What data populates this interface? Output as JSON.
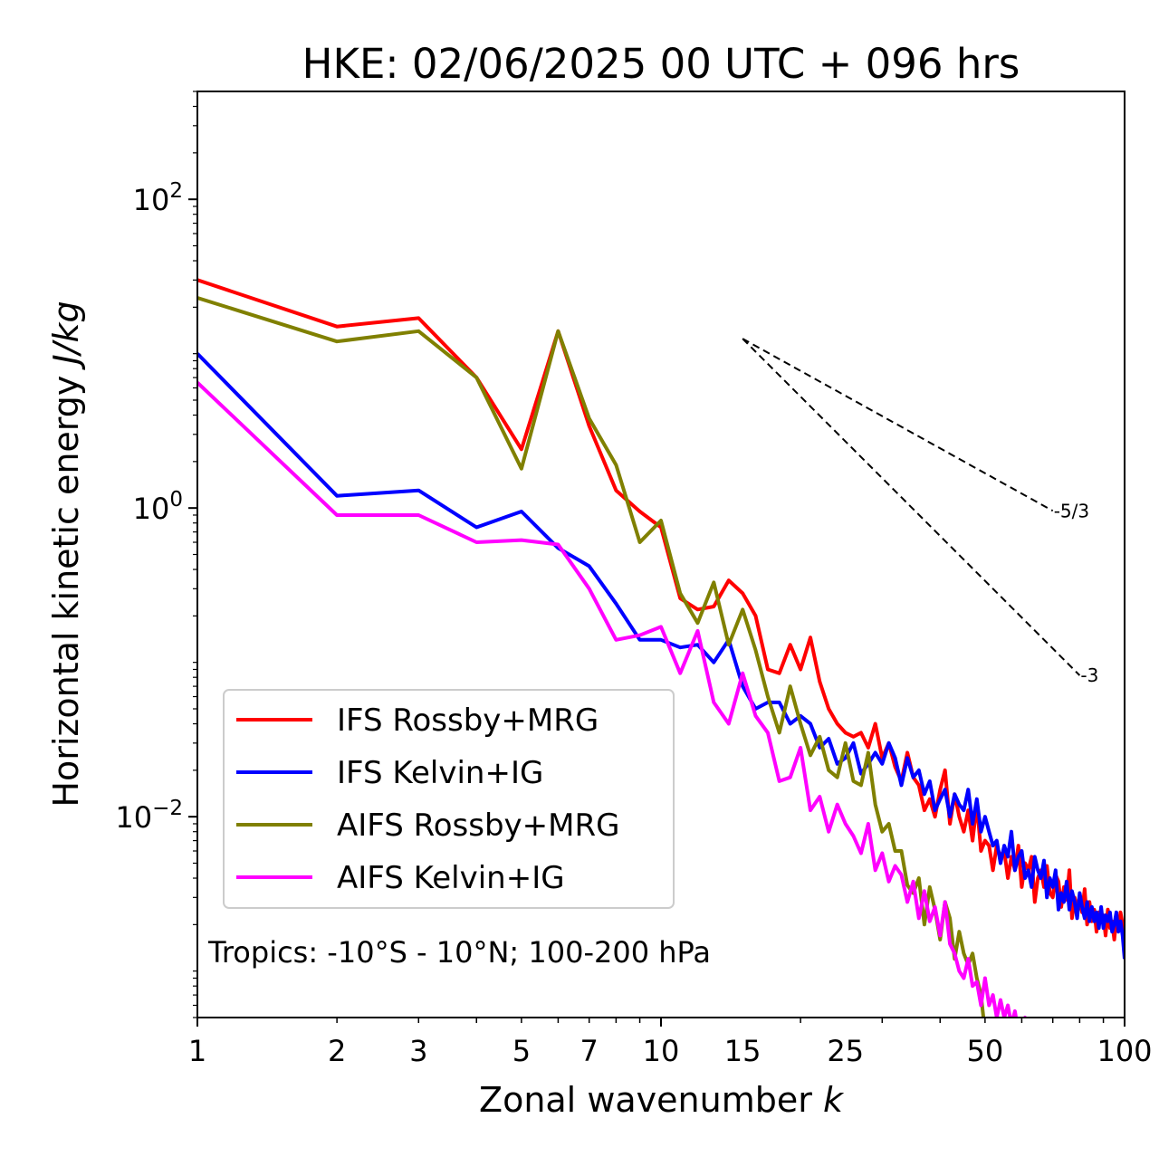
{
  "chart_data": {
    "type": "line",
    "title": "HKE: 02/06/2025 00 UTC + 096 hrs",
    "xlabel": "Zonal wavenumber k",
    "xlabel_main": "Zonal wavenumber ",
    "xlabel_var": "k",
    "ylabel": "Horizontal kinetic energy J/kg",
    "ylabel_main": "Horizontal kinetic energy ",
    "ylabel_unit": "J/kg",
    "xscale": "log",
    "yscale": "log",
    "xlim": [
      1,
      100
    ],
    "ylim": [
      0.0005,
      500
    ],
    "x_ticks": [
      {
        "value": 1,
        "label": "1"
      },
      {
        "value": 2,
        "label": "2"
      },
      {
        "value": 3,
        "label": "3"
      },
      {
        "value": 5,
        "label": "5"
      },
      {
        "value": 7,
        "label": "7"
      },
      {
        "value": 10,
        "label": "10"
      },
      {
        "value": 15,
        "label": "15"
      },
      {
        "value": 25,
        "label": "25"
      },
      {
        "value": 50,
        "label": "50"
      },
      {
        "value": 100,
        "label": "100"
      }
    ],
    "y_ticks": [
      {
        "value": 100,
        "base": "10",
        "exp": "2"
      },
      {
        "value": 1,
        "base": "10",
        "exp": "0"
      },
      {
        "value": 0.01,
        "base": "10",
        "exp": "−2"
      }
    ],
    "grid": false,
    "legend_position": "lower-left",
    "annotation": "Tropics: -10°S - 10°N; 100-200 hPa",
    "reference_lines": [
      {
        "label": "-5/3",
        "slope": -1.6667,
        "x": [
          15,
          70
        ],
        "y0": 12.5
      },
      {
        "label": "-3",
        "slope": -3,
        "x": [
          15,
          80
        ],
        "y0": 12.5
      }
    ],
    "series": [
      {
        "name": "IFS Rossby+MRG",
        "color": "#ff0000",
        "x": [
          1,
          2,
          3,
          4,
          5,
          6,
          7,
          8,
          9,
          10,
          11,
          12,
          13,
          14,
          15,
          16,
          17,
          18,
          19,
          20,
          21,
          22,
          23,
          24,
          25,
          26,
          27,
          28,
          29,
          30,
          31,
          32,
          33,
          34,
          35,
          36,
          37,
          38,
          39,
          40,
          41,
          42,
          43,
          44,
          45,
          46,
          47,
          48,
          49,
          50,
          51,
          52,
          53,
          54,
          55,
          56,
          57,
          58,
          59,
          60,
          61,
          62,
          63,
          64,
          65,
          66,
          67,
          68,
          69,
          70,
          71,
          72,
          73,
          74,
          75,
          76,
          77,
          78,
          79,
          80,
          81,
          82,
          83,
          84,
          85,
          86,
          87,
          88,
          89,
          90,
          91,
          92,
          93,
          94,
          95,
          96,
          97,
          98,
          99,
          100
        ],
        "y": [
          30,
          15,
          17,
          7,
          2.4,
          14,
          3.4,
          1.3,
          0.95,
          0.75,
          0.26,
          0.22,
          0.23,
          0.34,
          0.28,
          0.2,
          0.09,
          0.085,
          0.13,
          0.09,
          0.145,
          0.075,
          0.05,
          0.04,
          0.035,
          0.033,
          0.035,
          0.028,
          0.04,
          0.024,
          0.03,
          0.021,
          0.017,
          0.026,
          0.018,
          0.016,
          0.011,
          0.013,
          0.01,
          0.015,
          0.02,
          0.009,
          0.014,
          0.01,
          0.008,
          0.011,
          0.007,
          0.012,
          0.006,
          0.007,
          0.0065,
          0.0045,
          0.0065,
          0.0055,
          0.006,
          0.004,
          0.0055,
          0.0045,
          0.0065,
          0.0035,
          0.005,
          0.0045,
          0.0055,
          0.0028,
          0.004,
          0.0045,
          0.0035,
          0.0048,
          0.0032,
          0.003,
          0.0042,
          0.0038,
          0.0026,
          0.0035,
          0.0029,
          0.0045,
          0.0022,
          0.003,
          0.0026,
          0.0029,
          0.0024,
          0.0034,
          0.002,
          0.0028,
          0.0021,
          0.0025,
          0.0018,
          0.0024,
          0.0021,
          0.0023,
          0.0017,
          0.0025,
          0.0019,
          0.0021,
          0.0016,
          0.0022,
          0.0019,
          0.0024,
          0.002,
          0.0015
        ]
      },
      {
        "name": "IFS Kelvin+IG",
        "color": "#0000ff",
        "x": [
          1,
          2,
          3,
          4,
          5,
          6,
          7,
          8,
          9,
          10,
          11,
          12,
          13,
          14,
          15,
          16,
          17,
          18,
          19,
          20,
          21,
          22,
          23,
          24,
          25,
          26,
          27,
          28,
          29,
          30,
          31,
          32,
          33,
          34,
          35,
          36,
          37,
          38,
          39,
          40,
          41,
          42,
          43,
          44,
          45,
          46,
          47,
          48,
          49,
          50,
          51,
          52,
          53,
          54,
          55,
          56,
          57,
          58,
          59,
          60,
          61,
          62,
          63,
          64,
          65,
          66,
          67,
          68,
          69,
          70,
          71,
          72,
          73,
          74,
          75,
          76,
          77,
          78,
          79,
          80,
          81,
          82,
          83,
          84,
          85,
          86,
          87,
          88,
          89,
          90,
          91,
          92,
          93,
          94,
          95,
          96,
          97,
          98,
          99,
          100
        ],
        "y": [
          10,
          1.2,
          1.3,
          0.75,
          0.95,
          0.55,
          0.42,
          0.24,
          0.14,
          0.14,
          0.125,
          0.13,
          0.1,
          0.14,
          0.07,
          0.05,
          0.055,
          0.055,
          0.04,
          0.045,
          0.04,
          0.028,
          0.032,
          0.022,
          0.024,
          0.03,
          0.019,
          0.022,
          0.026,
          0.022,
          0.03,
          0.024,
          0.016,
          0.024,
          0.018,
          0.02,
          0.014,
          0.017,
          0.011,
          0.013,
          0.015,
          0.01,
          0.014,
          0.012,
          0.011,
          0.015,
          0.009,
          0.013,
          0.008,
          0.01,
          0.008,
          0.0065,
          0.007,
          0.005,
          0.0065,
          0.0055,
          0.008,
          0.0045,
          0.0055,
          0.006,
          0.004,
          0.0045,
          0.0035,
          0.0055,
          0.0045,
          0.004,
          0.0052,
          0.003,
          0.004,
          0.0035,
          0.0045,
          0.0025,
          0.0032,
          0.0028,
          0.0038,
          0.0025,
          0.0033,
          0.0028,
          0.0022,
          0.0032,
          0.0026,
          0.0022,
          0.0028,
          0.0021,
          0.0026,
          0.0021,
          0.0024,
          0.0019,
          0.0026,
          0.0019,
          0.0023,
          0.0021,
          0.0024,
          0.0018,
          0.002,
          0.0024,
          0.0018,
          0.0021,
          0.0017,
          0.0012
        ]
      },
      {
        "name": "AIFS Rossby+MRG",
        "color": "#808000",
        "x": [
          1,
          2,
          3,
          4,
          5,
          6,
          7,
          8,
          9,
          10,
          11,
          12,
          13,
          14,
          15,
          16,
          17,
          18,
          19,
          20,
          21,
          22,
          23,
          24,
          25,
          26,
          27,
          28,
          29,
          30,
          31,
          32,
          33,
          34,
          35,
          36,
          37,
          38,
          39,
          40,
          41,
          42,
          43,
          44,
          45,
          46,
          47,
          48,
          49,
          50
        ],
        "y": [
          23,
          12,
          14,
          7,
          1.8,
          14,
          3.8,
          1.9,
          0.6,
          0.83,
          0.28,
          0.18,
          0.33,
          0.13,
          0.22,
          0.12,
          0.06,
          0.035,
          0.07,
          0.04,
          0.025,
          0.033,
          0.02,
          0.018,
          0.03,
          0.017,
          0.016,
          0.026,
          0.012,
          0.008,
          0.009,
          0.006,
          0.006,
          0.0036,
          0.0032,
          0.004,
          0.002,
          0.0035,
          0.0025,
          0.0016,
          0.0028,
          0.0022,
          0.0012,
          0.0018,
          0.0013,
          0.0011,
          0.0013,
          0.0009,
          0.0007,
          0.0004
        ]
      },
      {
        "name": "AIFS Kelvin+IG",
        "color": "#ff00ff",
        "x": [
          1,
          2,
          3,
          4,
          5,
          6,
          7,
          8,
          9,
          10,
          11,
          12,
          13,
          14,
          15,
          16,
          17,
          18,
          19,
          20,
          21,
          22,
          23,
          24,
          25,
          26,
          27,
          28,
          29,
          30,
          31,
          32,
          33,
          34,
          35,
          36,
          37,
          38,
          39,
          40,
          41,
          42,
          43,
          44,
          45,
          46,
          47,
          48,
          49,
          50,
          51,
          52,
          53,
          54,
          55,
          56,
          57,
          58,
          59,
          60,
          61,
          62
        ],
        "y": [
          6.5,
          0.9,
          0.9,
          0.6,
          0.62,
          0.58,
          0.3,
          0.14,
          0.15,
          0.17,
          0.085,
          0.16,
          0.055,
          0.04,
          0.085,
          0.045,
          0.035,
          0.017,
          0.018,
          0.028,
          0.011,
          0.0135,
          0.008,
          0.012,
          0.009,
          0.0075,
          0.0058,
          0.009,
          0.0045,
          0.0058,
          0.0038,
          0.0048,
          0.0042,
          0.0028,
          0.0038,
          0.0022,
          0.0033,
          0.0021,
          0.0026,
          0.0017,
          0.0028,
          0.0015,
          0.0013,
          0.001,
          0.0009,
          0.0012,
          0.0008,
          0.00085,
          0.0006,
          0.0009,
          0.0006,
          0.0007,
          0.0005,
          0.00065,
          0.0005,
          0.0006,
          0.00045,
          0.00055,
          0.0004,
          0.00045,
          0.0005,
          0.0004
        ]
      }
    ]
  }
}
